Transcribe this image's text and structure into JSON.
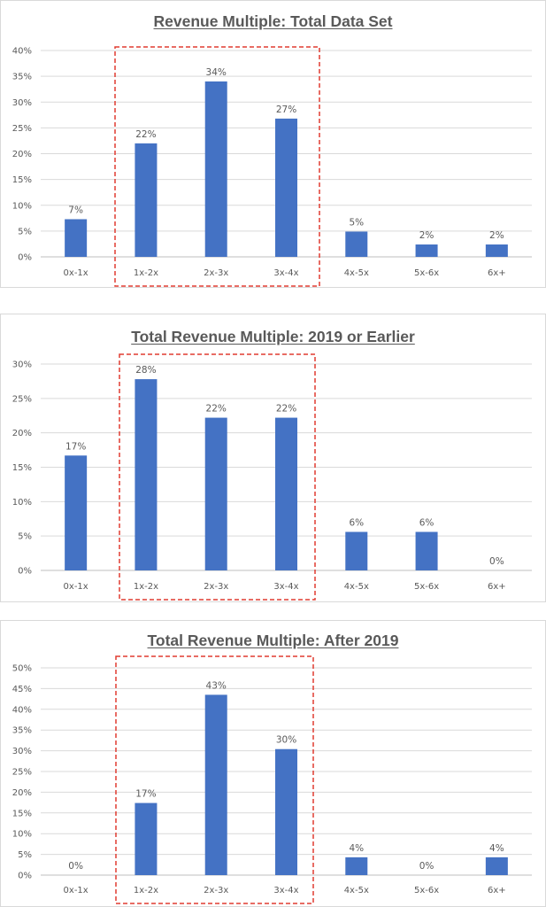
{
  "chart_data": [
    {
      "type": "bar",
      "title": "Revenue Multiple: Total Data Set",
      "categories": [
        "0x-1x",
        "1x-2x",
        "2x-3x",
        "3x-4x",
        "4x-5x",
        "5x-6x",
        "6x+"
      ],
      "values": [
        7.3,
        22,
        34,
        26.8,
        4.9,
        2.4,
        2.4
      ],
      "data_labels": [
        "7%",
        "22%",
        "34%",
        "27%",
        "5%",
        "2%",
        "2%"
      ],
      "ylim": [
        0,
        40
      ],
      "yticks": [
        "0%",
        "5%",
        "10%",
        "15%",
        "20%",
        "25%",
        "30%",
        "35%",
        "40%"
      ],
      "xlabel": "",
      "ylabel": "",
      "grid": true,
      "bar_color": "#4472C4",
      "highlight_color": "#E03C31",
      "highlight": [
        "1x-2x",
        "2x-3x",
        "3x-4x"
      ]
    },
    {
      "type": "bar",
      "title": "Total Revenue Multiple: 2019 or Earlier",
      "categories": [
        "0x-1x",
        "1x-2x",
        "2x-3x",
        "3x-4x",
        "4x-5x",
        "5x-6x",
        "6x+"
      ],
      "values": [
        16.7,
        27.8,
        22.2,
        22.2,
        5.6,
        5.6,
        0
      ],
      "data_labels": [
        "17%",
        "28%",
        "22%",
        "22%",
        "6%",
        "6%",
        "0%"
      ],
      "ylim": [
        0,
        30
      ],
      "yticks": [
        "0%",
        "5%",
        "10%",
        "15%",
        "20%",
        "25%",
        "30%"
      ],
      "xlabel": "",
      "ylabel": "",
      "grid": true,
      "bar_color": "#4472C4",
      "highlight_color": "#E03C31",
      "highlight": [
        "1x-2x",
        "2x-3x",
        "3x-4x"
      ]
    },
    {
      "type": "bar",
      "title": "Total Revenue Multiple: After 2019",
      "categories": [
        "0x-1x",
        "1x-2x",
        "2x-3x",
        "3x-4x",
        "4x-5x",
        "5x-6x",
        "6x+"
      ],
      "values": [
        0,
        17.4,
        43.5,
        30.4,
        4.3,
        0,
        4.3
      ],
      "data_labels": [
        "0%",
        "17%",
        "43%",
        "30%",
        "4%",
        "0%",
        "4%"
      ],
      "ylim": [
        0,
        50
      ],
      "yticks": [
        "0%",
        "5%",
        "10%",
        "15%",
        "20%",
        "25%",
        "30%",
        "35%",
        "40%",
        "45%",
        "50%"
      ],
      "xlabel": "",
      "ylabel": "",
      "grid": true,
      "bar_color": "#4472C4",
      "highlight_color": "#E03C31",
      "highlight": [
        "1x-2x",
        "2x-3x",
        "3x-4x"
      ]
    }
  ]
}
